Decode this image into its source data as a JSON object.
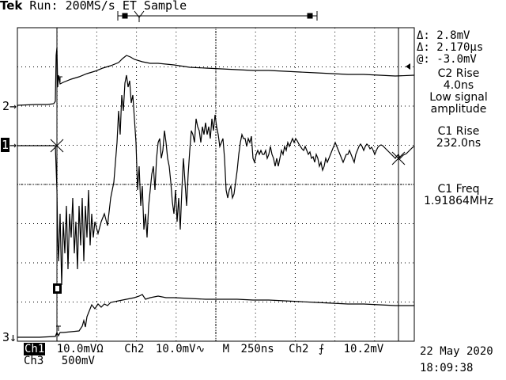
{
  "header": {
    "brand": "Tek",
    "status": "Run: 200MS/s ET Sample"
  },
  "markers": {
    "ch2": "2",
    "ch1": "1",
    "ch3": "3"
  },
  "measurements": {
    "delta_v": "Δ: 2.8mV",
    "delta_t": "Δ: 2.170µs",
    "at_v": "@: -3.0mV",
    "m1_title": "C2 Rise",
    "m1_value": "4.0ns",
    "m1_note1": "Low signal",
    "m1_note2": "amplitude",
    "m2_title": "C1 Rise",
    "m2_value": "232.0ns",
    "m3_title": "C1 Freq",
    "m3_value": "1.91864MHz"
  },
  "footer": {
    "ch1_label": "Ch1",
    "ch1_scale": "10.0mVΩ",
    "ch2_label": "Ch2",
    "ch2_scale": "10.0mV∿",
    "timebase_label": "M",
    "timebase": "250ns",
    "trigger_src": "Ch2",
    "trigger_slope": "⨍",
    "trigger_level": "10.2mV",
    "ch3_label": "Ch3",
    "ch3_scale": "500mV",
    "date": "22 May 2020",
    "time": "18:09:38"
  },
  "colors": {
    "background": "#ffffff",
    "trace": "#000000",
    "grid": "#000000"
  },
  "icons": [
    "trigger-position-icon",
    "channel-marker-icon",
    "trigger-level-icon"
  ]
}
